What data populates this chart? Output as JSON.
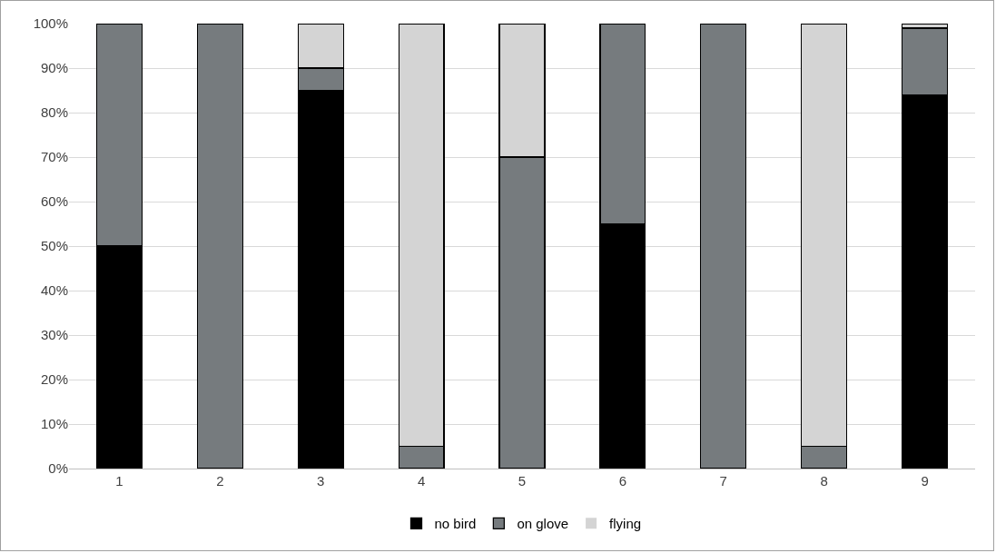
{
  "chart_data": {
    "type": "bar",
    "stacked": true,
    "categories": [
      "1",
      "2",
      "3",
      "4",
      "5",
      "6",
      "7",
      "8",
      "9"
    ],
    "series": [
      {
        "name": "no bird",
        "color": "#000000",
        "values": [
          50,
          0,
          85,
          0,
          0,
          55,
          0,
          0,
          84
        ]
      },
      {
        "name": "on glove",
        "color": "#767b7e",
        "values": [
          50,
          100,
          5,
          5,
          70,
          45,
          100,
          5,
          15
        ]
      },
      {
        "name": "flying",
        "color": "#d4d4d4",
        "values": [
          0,
          0,
          10,
          95,
          30,
          0,
          0,
          95,
          1
        ]
      }
    ],
    "ylim": [
      0,
      100
    ],
    "yticks": [
      {
        "value": 0,
        "label": "0%"
      },
      {
        "value": 10,
        "label": "10%"
      },
      {
        "value": 20,
        "label": "20%"
      },
      {
        "value": 30,
        "label": "30%"
      },
      {
        "value": 40,
        "label": "40%"
      },
      {
        "value": 50,
        "label": "50%"
      },
      {
        "value": 60,
        "label": "60%"
      },
      {
        "value": 70,
        "label": "70%"
      },
      {
        "value": 80,
        "label": "80%"
      },
      {
        "value": 90,
        "label": "90%"
      },
      {
        "value": 100,
        "label": "100%"
      }
    ],
    "grid": "y",
    "legend": "bottom"
  }
}
